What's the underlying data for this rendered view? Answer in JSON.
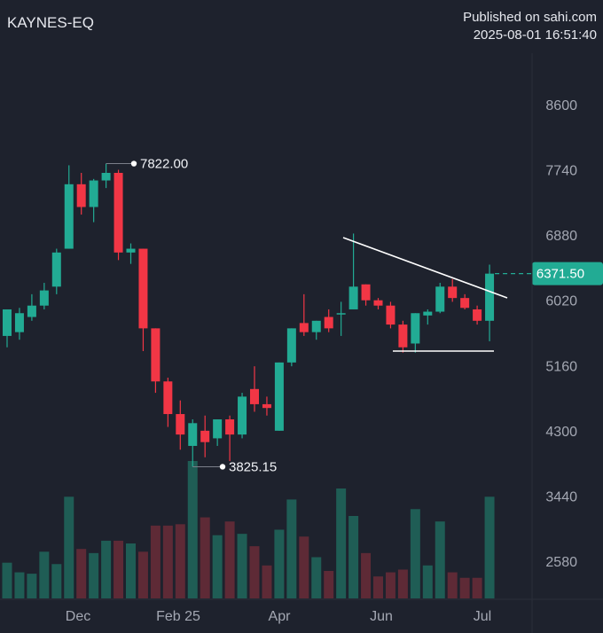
{
  "header": {
    "symbol": "KAYNES-EQ",
    "published": "Published on sahi.com",
    "timestamp": "2025-08-01 16:51:40"
  },
  "colors": {
    "background": "#1e222d",
    "up": "#22ab94",
    "down": "#f23645",
    "vol_up": "#1f5d55",
    "vol_down": "#5e2a36",
    "trendline": "#ffffff",
    "last_price_label": "#22ab94"
  },
  "chart_data": {
    "type": "candlestick",
    "symbol": "KAYNES-EQ",
    "timeframe": "weekly",
    "y_ticks": [
      8600,
      7740,
      6880,
      6020,
      5160,
      4300,
      3440,
      2580
    ],
    "x_ticks": [
      "Dec",
      "Feb 25",
      "Apr",
      "Jun",
      "Jul"
    ],
    "ylim": [
      2150,
      9100
    ],
    "grid": false,
    "last_price": "6371.50",
    "high_label": "7822.00",
    "low_label": "3825.15",
    "annotations": [
      "downward trendline from May peak",
      "horizontal support near 5330"
    ],
    "candles": [
      {
        "o": 5550,
        "h": 5900,
        "l": 5400,
        "c": 5900,
        "v": 0.26
      },
      {
        "o": 5600,
        "h": 5920,
        "l": 5500,
        "c": 5850,
        "v": 0.19
      },
      {
        "o": 5800,
        "h": 6100,
        "l": 5750,
        "c": 5950,
        "v": 0.18
      },
      {
        "o": 5950,
        "h": 6250,
        "l": 5900,
        "c": 6150,
        "v": 0.34
      },
      {
        "o": 6200,
        "h": 6700,
        "l": 6100,
        "c": 6650,
        "v": 0.25
      },
      {
        "o": 6700,
        "h": 7800,
        "l": 6700,
        "c": 7550,
        "v": 0.74
      },
      {
        "o": 7550,
        "h": 7700,
        "l": 7150,
        "c": 7250,
        "v": 0.36
      },
      {
        "o": 7250,
        "h": 7620,
        "l": 7050,
        "c": 7600,
        "v": 0.33
      },
      {
        "o": 7600,
        "h": 7822,
        "l": 7500,
        "c": 7700,
        "v": 0.42
      },
      {
        "o": 7700,
        "h": 7740,
        "l": 6550,
        "c": 6650,
        "v": 0.42
      },
      {
        "o": 6650,
        "h": 6770,
        "l": 6500,
        "c": 6700,
        "v": 0.4
      },
      {
        "o": 6700,
        "h": 6700,
        "l": 5350,
        "c": 5650,
        "v": 0.34
      },
      {
        "o": 5650,
        "h": 5650,
        "l": 4800,
        "c": 4950,
        "v": 0.53
      },
      {
        "o": 4950,
        "h": 5000,
        "l": 4350,
        "c": 4520,
        "v": 0.53
      },
      {
        "o": 4520,
        "h": 4700,
        "l": 4050,
        "c": 4250,
        "v": 0.54
      },
      {
        "o": 4100,
        "h": 4450,
        "l": 3825.15,
        "c": 4400,
        "v": 1.0
      },
      {
        "o": 4300,
        "h": 4500,
        "l": 3950,
        "c": 4150,
        "v": 0.59
      },
      {
        "o": 4200,
        "h": 4450,
        "l": 4100,
        "c": 4450,
        "v": 0.46
      },
      {
        "o": 4450,
        "h": 4500,
        "l": 3900,
        "c": 4250,
        "v": 0.56
      },
      {
        "o": 4250,
        "h": 4800,
        "l": 4200,
        "c": 4750,
        "v": 0.47
      },
      {
        "o": 4850,
        "h": 5150,
        "l": 4550,
        "c": 4650,
        "v": 0.38
      },
      {
        "o": 4650,
        "h": 4750,
        "l": 4500,
        "c": 4600,
        "v": 0.24
      },
      {
        "o": 4300,
        "h": 5200,
        "l": 4300,
        "c": 5200,
        "v": 0.5
      },
      {
        "o": 5200,
        "h": 5650,
        "l": 5150,
        "c": 5650,
        "v": 0.72
      },
      {
        "o": 5720,
        "h": 6100,
        "l": 5550,
        "c": 5600,
        "v": 0.45
      },
      {
        "o": 5600,
        "h": 5750,
        "l": 5500,
        "c": 5750,
        "v": 0.3
      },
      {
        "o": 5800,
        "h": 5900,
        "l": 5600,
        "c": 5650,
        "v": 0.2
      },
      {
        "o": 5850,
        "h": 6000,
        "l": 5550,
        "c": 5850,
        "v": 0.8
      },
      {
        "o": 5900,
        "h": 6900,
        "l": 5900,
        "c": 6200,
        "v": 0.6
      },
      {
        "o": 6230,
        "h": 6230,
        "l": 5950,
        "c": 6020,
        "v": 0.33
      },
      {
        "o": 6020,
        "h": 6050,
        "l": 5900,
        "c": 5950,
        "v": 0.16
      },
      {
        "o": 5950,
        "h": 6000,
        "l": 5650,
        "c": 5700,
        "v": 0.19
      },
      {
        "o": 5700,
        "h": 5750,
        "l": 5330,
        "c": 5400,
        "v": 0.21
      },
      {
        "o": 5450,
        "h": 5850,
        "l": 5330,
        "c": 5850,
        "v": 0.65
      },
      {
        "o": 5820,
        "h": 5900,
        "l": 5700,
        "c": 5870,
        "v": 0.24
      },
      {
        "o": 5870,
        "h": 6250,
        "l": 5850,
        "c": 6200,
        "v": 0.56
      },
      {
        "o": 6200,
        "h": 6300,
        "l": 6000,
        "c": 6050,
        "v": 0.19
      },
      {
        "o": 6050,
        "h": 6100,
        "l": 5900,
        "c": 5920,
        "v": 0.15
      },
      {
        "o": 5900,
        "h": 5950,
        "l": 5700,
        "c": 5750,
        "v": 0.15
      },
      {
        "o": 5750,
        "h": 6490,
        "l": 5480,
        "c": 6371.5,
        "v": 0.74
      }
    ]
  }
}
